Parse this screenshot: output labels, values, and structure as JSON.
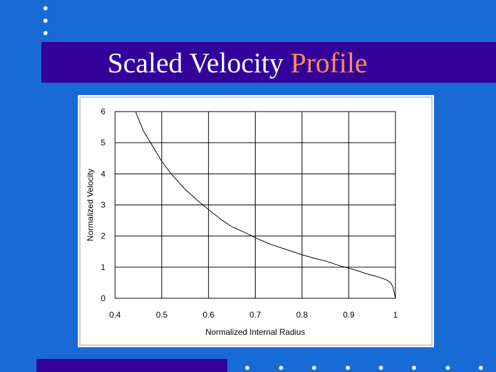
{
  "slide": {
    "title": "Scaled Velocity",
    "title_accent": "Profile",
    "colors": {
      "background": "#1a6ad6",
      "title_bar": "#330099",
      "title_text": "#ffffff",
      "title_accent": "#ff8c55",
      "bullet_dots": "#ffffff"
    }
  },
  "chart_data": {
    "type": "line",
    "title": "",
    "xlabel": "Normalized Internal Radius",
    "ylabel": "Normalized Velocity",
    "xlim": [
      0.4,
      1.0
    ],
    "ylim": [
      0,
      6
    ],
    "x_ticks": [
      "0.4",
      "0.5",
      "0.6",
      "0.7",
      "0.8",
      "0.9",
      "1"
    ],
    "y_ticks": [
      "0",
      "1",
      "2",
      "3",
      "4",
      "5",
      "6"
    ],
    "x_tick_values": [
      0.4,
      0.5,
      0.6,
      0.7,
      0.8,
      0.9,
      1.0
    ],
    "y_tick_values": [
      0,
      1,
      2,
      3,
      4,
      5,
      6
    ],
    "grid": true,
    "legend": "none",
    "series": [
      {
        "color": "#000000",
        "x": [
          0.444,
          0.46,
          0.48,
          0.5,
          0.52,
          0.55,
          0.58,
          0.6,
          0.63,
          0.65,
          0.68,
          0.7,
          0.73,
          0.75,
          0.78,
          0.8,
          0.83,
          0.85,
          0.88,
          0.9,
          0.92,
          0.94,
          0.96,
          0.98,
          0.99,
          0.995,
          1.0
        ],
        "y": [
          6.0,
          5.4,
          4.9,
          4.4,
          4.0,
          3.5,
          3.1,
          2.85,
          2.5,
          2.3,
          2.1,
          1.95,
          1.75,
          1.65,
          1.5,
          1.4,
          1.27,
          1.2,
          1.05,
          0.97,
          0.88,
          0.78,
          0.7,
          0.6,
          0.5,
          0.35,
          0.0
        ]
      }
    ]
  }
}
